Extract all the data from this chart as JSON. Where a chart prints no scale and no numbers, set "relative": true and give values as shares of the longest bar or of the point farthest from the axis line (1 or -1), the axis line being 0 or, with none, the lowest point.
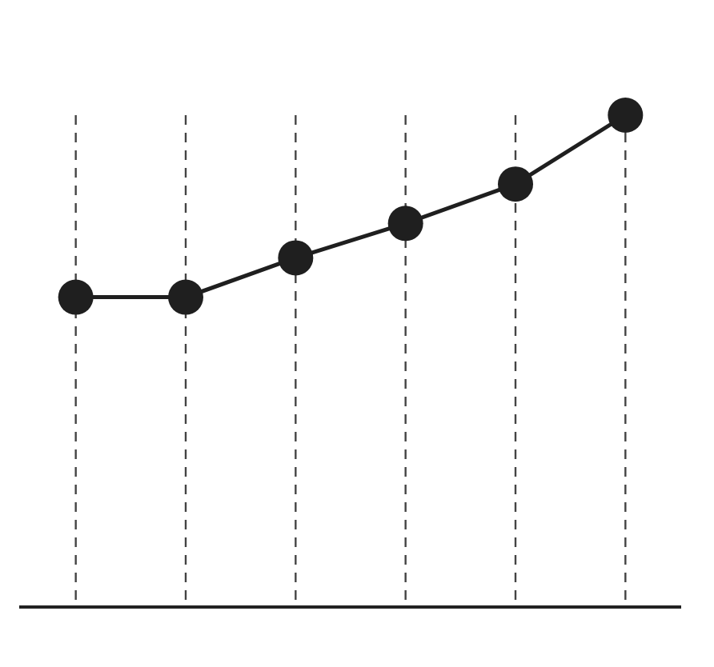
{
  "chart_data": {
    "type": "line",
    "relative": true,
    "categories": [
      null,
      null,
      null,
      null,
      null,
      null
    ],
    "series": [
      {
        "color": "#1f1f1f",
        "values": [
          0.63,
          0.63,
          0.71,
          0.78,
          0.86,
          1
        ]
      }
    ],
    "marker": "circle",
    "grid": "x",
    "legend": false
  }
}
